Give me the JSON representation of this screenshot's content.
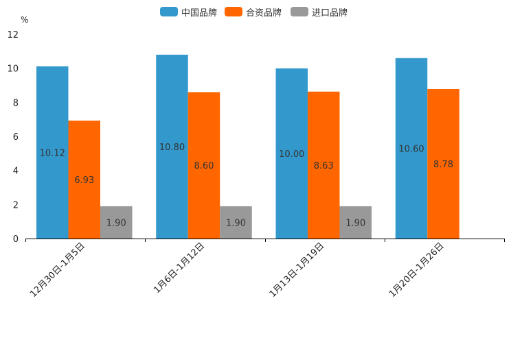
{
  "chart_data": {
    "type": "bar",
    "title": "",
    "ylabel": "%",
    "xlabel": "",
    "ylim": [
      0,
      12
    ],
    "yticks": [
      0,
      2,
      4,
      6,
      8,
      10,
      12
    ],
    "legend_position": "top-center",
    "categories": [
      "12月30日-1月5日",
      "1月6日-1月12日",
      "1月13日-1月19日",
      "1月20日-1月26日"
    ],
    "series": [
      {
        "name": "中国品牌",
        "color": "#3399cc",
        "values": [
          10.12,
          10.8,
          10.0,
          10.6
        ],
        "labels": [
          "10.12",
          "10.80",
          "10.00",
          "10.60"
        ]
      },
      {
        "name": "合资品牌",
        "color": "#ff6600",
        "values": [
          6.93,
          8.6,
          8.63,
          8.78
        ],
        "labels": [
          "6.93",
          "8.60",
          "8.63",
          "8.78"
        ]
      },
      {
        "name": "进口品牌",
        "color": "#999999",
        "values": [
          1.9,
          1.9,
          1.9,
          null
        ],
        "labels": [
          "1.90",
          "1.90",
          "1.90",
          null
        ]
      }
    ]
  }
}
